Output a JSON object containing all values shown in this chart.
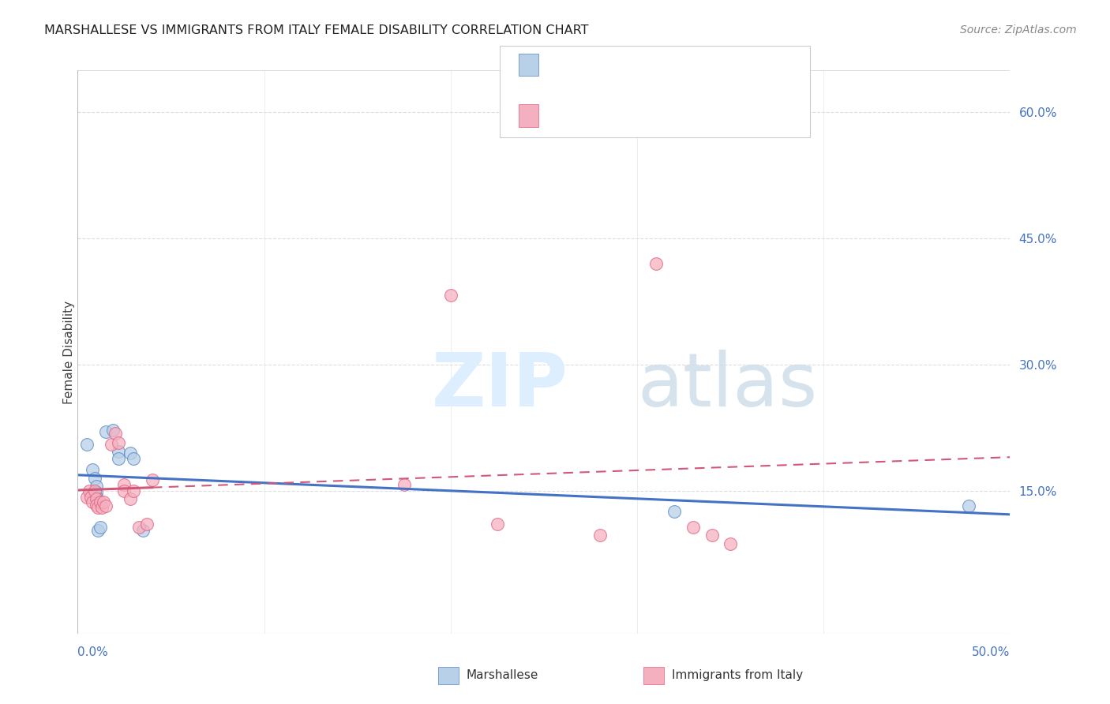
{
  "title": "MARSHALLESE VS IMMIGRANTS FROM ITALY FEMALE DISABILITY CORRELATION CHART",
  "source": "Source: ZipAtlas.com",
  "ylabel": "Female Disability",
  "ytick_labels": [
    "15.0%",
    "30.0%",
    "45.0%",
    "60.0%"
  ],
  "ytick_values": [
    0.15,
    0.3,
    0.45,
    0.6
  ],
  "xlim": [
    0.0,
    0.5
  ],
  "ylim": [
    -0.02,
    0.65
  ],
  "legend_label_blue": "Marshallese",
  "legend_label_pink": "Immigrants from Italy",
  "color_blue_fill": "#b8d0e8",
  "color_pink_fill": "#f5b0c0",
  "color_blue_edge": "#5585c5",
  "color_pink_edge": "#e06080",
  "color_blue_line": "#4472c4",
  "color_pink_line": "#d05878",
  "color_r_text": "#4472c4",
  "bg_color": "#ffffff",
  "grid_color": "#dddddd",
  "blue_points": [
    [
      0.005,
      0.205
    ],
    [
      0.008,
      0.175
    ],
    [
      0.009,
      0.165
    ],
    [
      0.01,
      0.155
    ],
    [
      0.01,
      0.148
    ],
    [
      0.01,
      0.142
    ],
    [
      0.011,
      0.103
    ],
    [
      0.012,
      0.107
    ],
    [
      0.015,
      0.22
    ],
    [
      0.019,
      0.222
    ],
    [
      0.022,
      0.197
    ],
    [
      0.022,
      0.188
    ],
    [
      0.028,
      0.195
    ],
    [
      0.03,
      0.188
    ],
    [
      0.035,
      0.103
    ],
    [
      0.32,
      0.125
    ],
    [
      0.478,
      0.132
    ]
  ],
  "pink_points": [
    [
      0.005,
      0.142
    ],
    [
      0.006,
      0.15
    ],
    [
      0.007,
      0.142
    ],
    [
      0.008,
      0.137
    ],
    [
      0.009,
      0.15
    ],
    [
      0.01,
      0.14
    ],
    [
      0.01,
      0.133
    ],
    [
      0.011,
      0.13
    ],
    [
      0.012,
      0.137
    ],
    [
      0.013,
      0.13
    ],
    [
      0.014,
      0.137
    ],
    [
      0.015,
      0.132
    ],
    [
      0.018,
      0.205
    ],
    [
      0.02,
      0.218
    ],
    [
      0.022,
      0.207
    ],
    [
      0.025,
      0.157
    ],
    [
      0.025,
      0.15
    ],
    [
      0.028,
      0.14
    ],
    [
      0.03,
      0.15
    ],
    [
      0.033,
      0.107
    ],
    [
      0.037,
      0.11
    ],
    [
      0.04,
      0.163
    ],
    [
      0.175,
      0.157
    ],
    [
      0.2,
      0.383
    ],
    [
      0.225,
      0.11
    ],
    [
      0.28,
      0.097
    ],
    [
      0.31,
      0.42
    ],
    [
      0.33,
      0.107
    ],
    [
      0.34,
      0.097
    ],
    [
      0.35,
      0.087
    ]
  ]
}
